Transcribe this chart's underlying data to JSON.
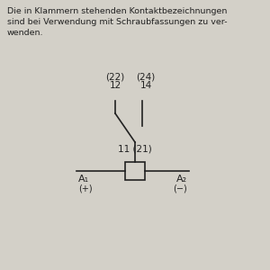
{
  "bg_color": "#d3d0c8",
  "text_color": "#222222",
  "title_text": "Die in Klammern stehenden Kontaktbezeichnungen\nsind bei Verwendung mit Schraubfassungen zu ver-\nwenden.",
  "label_22": "(22)",
  "label_24": "(24)",
  "label_12": "12",
  "label_14": "14",
  "label_11_21": "11 (21)",
  "label_A1": "A₁",
  "label_A1_sub": "(+)",
  "label_A2": "A₂",
  "label_A2_sub": "(−)",
  "line_color": "#222222",
  "line_width": 1.2,
  "font_size_text": 6.8,
  "font_size_label": 7.5
}
